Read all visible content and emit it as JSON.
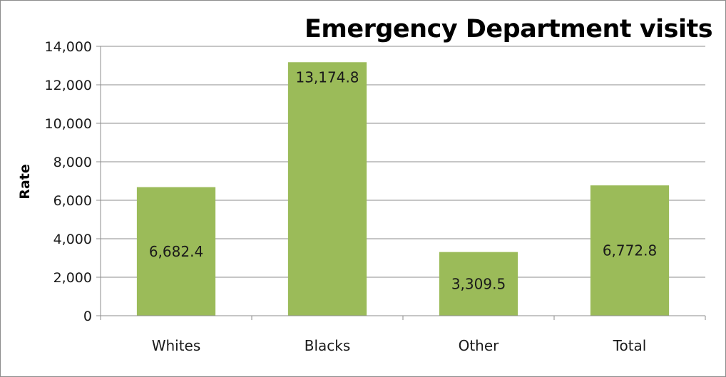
{
  "chart_data": {
    "type": "bar",
    "title": "Emergency Department visits",
    "xlabel": "",
    "ylabel": "Rate",
    "categories": [
      "Whites",
      "Blacks",
      "Other",
      "Total"
    ],
    "values": [
      6682.4,
      13174.8,
      3309.5,
      6772.8
    ],
    "data_labels": [
      "6,682.4",
      "13,174.8",
      "3,309.5",
      "6,772.8"
    ],
    "ylim": [
      0,
      14000
    ],
    "yticks": [
      0,
      2000,
      4000,
      6000,
      8000,
      10000,
      12000,
      14000
    ],
    "ytick_labels": [
      "0",
      "2,000",
      "4,000",
      "6,000",
      "8,000",
      "10,000",
      "12,000",
      "14,000"
    ],
    "grid": "horizontal",
    "legend": "none",
    "bar_color": "#9bbb59",
    "grid_color": "#8c8c8c",
    "axis_color": "#8c8c8c"
  }
}
